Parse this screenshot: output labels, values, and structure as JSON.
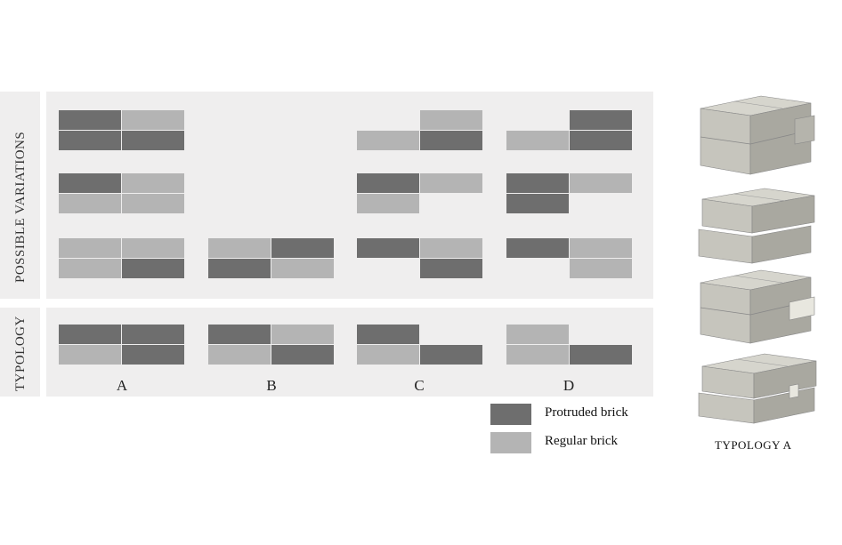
{
  "labels": {
    "possible_variations": "POSSIBLE VARIATIONS",
    "typology": "TYPOLOGY",
    "columns": [
      "A",
      "B",
      "C",
      "D"
    ]
  },
  "legend": {
    "protruded": "Protruded brick",
    "regular": "Regular brick"
  },
  "typology_caption": "TYPOLOGY A",
  "colors": {
    "protruded": "#6e6e6e",
    "regular": "#b4b4b4",
    "panel": "#efeeee",
    "block_top": "#d6d5cd",
    "block_front": "#c6c5bd",
    "block_side": "#a9a8a0"
  },
  "variations": [
    {
      "column": "A",
      "row": 1,
      "top": [
        "protruded",
        "regular"
      ],
      "bottom": [
        "protruded",
        "protruded"
      ]
    },
    {
      "column": "A",
      "row": 2,
      "top": [
        "protruded",
        "regular"
      ],
      "bottom": [
        "regular",
        "regular"
      ]
    },
    {
      "column": "A",
      "row": 3,
      "top": [
        "regular",
        "regular"
      ],
      "bottom": [
        "regular",
        "protruded"
      ]
    },
    {
      "column": "B",
      "row": 3,
      "top": [
        "regular",
        "protruded"
      ],
      "bottom": [
        "protruded",
        "regular"
      ]
    },
    {
      "column": "C",
      "row": 1,
      "top": [
        "none",
        "regular"
      ],
      "bottom": [
        "regular",
        "protruded"
      ]
    },
    {
      "column": "C",
      "row": 2,
      "top": [
        "protruded",
        "regular"
      ],
      "bottom": [
        "regular",
        "none"
      ]
    },
    {
      "column": "C",
      "row": 3,
      "top": [
        "protruded",
        "regular"
      ],
      "bottom": [
        "none",
        "protruded"
      ]
    },
    {
      "column": "D",
      "row": 1,
      "top": [
        "none",
        "protruded"
      ],
      "bottom": [
        "regular",
        "protruded"
      ]
    },
    {
      "column": "D",
      "row": 2,
      "top": [
        "protruded",
        "regular"
      ],
      "bottom": [
        "protruded",
        "none"
      ]
    },
    {
      "column": "D",
      "row": 3,
      "top": [
        "protruded",
        "regular"
      ],
      "bottom": [
        "none",
        "regular"
      ]
    }
  ],
  "typologies": [
    {
      "column": "A",
      "top": [
        "protruded",
        "protruded"
      ],
      "bottom": [
        "regular",
        "protruded"
      ]
    },
    {
      "column": "B",
      "top": [
        "protruded",
        "regular"
      ],
      "bottom": [
        "regular",
        "protruded"
      ]
    },
    {
      "column": "C",
      "top": [
        "protruded",
        "none"
      ],
      "bottom": [
        "regular",
        "protruded"
      ]
    },
    {
      "column": "D",
      "top": [
        "regular",
        "none"
      ],
      "bottom": [
        "regular",
        "protruded"
      ]
    }
  ]
}
